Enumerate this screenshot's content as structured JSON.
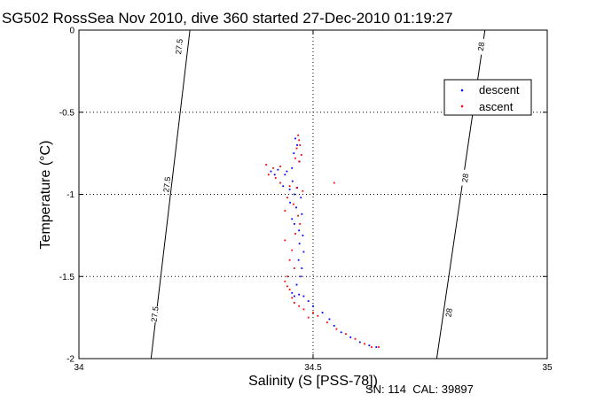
{
  "chart_data": {
    "type": "scatter",
    "title": "SG502 RossSea Nov 2010, dive 360 started 27-Dec-2010 01:19:27",
    "xlabel": "Salinity (S [PSS-78])",
    "ylabel": "Temperature (°C)",
    "xlim": [
      34,
      35
    ],
    "ylim": [
      -2,
      0
    ],
    "x_ticks": [
      "34",
      "34.5",
      "35"
    ],
    "y_ticks": [
      "0",
      "-0.5",
      "-1",
      "-1.5",
      "-2"
    ],
    "grid": true,
    "legend_position": "top-right",
    "footer": "SN: 114  CAL: 39897",
    "contours": [
      {
        "label": "27.5",
        "points": [
          [
            34.154,
            -2
          ],
          [
            34.237,
            0
          ]
        ],
        "label_at": [
          [
            34.214,
            -0.1
          ],
          [
            34.188,
            -0.94
          ],
          [
            34.162,
            -1.73
          ]
        ]
      },
      {
        "label": "28",
        "points": [
          [
            34.764,
            -2
          ],
          [
            34.867,
            0
          ]
        ],
        "label_at": [
          [
            34.859,
            -0.1
          ],
          [
            34.825,
            -0.9
          ],
          [
            34.79,
            -1.72
          ]
        ]
      }
    ],
    "series": [
      {
        "name": "descent",
        "color": "#0000ff",
        "points": [
          [
            34.462,
            -0.66
          ],
          [
            34.466,
            -0.7
          ],
          [
            34.459,
            -0.75
          ],
          [
            34.471,
            -0.8
          ],
          [
            34.455,
            -0.84
          ],
          [
            34.444,
            -0.86
          ],
          [
            34.425,
            -0.85
          ],
          [
            34.41,
            -0.86
          ],
          [
            34.418,
            -0.88
          ],
          [
            34.44,
            -0.88
          ],
          [
            34.456,
            -0.92
          ],
          [
            34.466,
            -0.96
          ],
          [
            34.436,
            -0.95
          ],
          [
            34.45,
            -0.97
          ],
          [
            34.46,
            -1.0
          ],
          [
            34.474,
            -1.02
          ],
          [
            34.451,
            -1.05
          ],
          [
            34.464,
            -1.08
          ],
          [
            34.476,
            -1.12
          ],
          [
            34.455,
            -1.15
          ],
          [
            34.46,
            -1.18
          ],
          [
            34.47,
            -1.22
          ],
          [
            34.478,
            -1.25
          ],
          [
            34.471,
            -1.3
          ],
          [
            34.48,
            -1.35
          ],
          [
            34.469,
            -1.4
          ],
          [
            34.476,
            -1.45
          ],
          [
            34.474,
            -1.5
          ],
          [
            34.465,
            -1.55
          ],
          [
            34.455,
            -1.6
          ],
          [
            34.46,
            -1.62
          ],
          [
            34.47,
            -1.61
          ],
          [
            34.48,
            -1.62
          ],
          [
            34.49,
            -1.65
          ],
          [
            34.5,
            -1.68
          ],
          [
            34.52,
            -1.72
          ],
          [
            34.535,
            -1.76
          ],
          [
            34.545,
            -1.8
          ],
          [
            34.56,
            -1.84
          ],
          [
            34.58,
            -1.87
          ],
          [
            34.6,
            -1.9
          ],
          [
            34.62,
            -1.92
          ],
          [
            34.635,
            -1.93
          ]
        ]
      },
      {
        "name": "ascent",
        "color": "#ff0000",
        "points": [
          [
            34.468,
            -0.64
          ],
          [
            34.47,
            -0.67
          ],
          [
            34.472,
            -0.7
          ],
          [
            34.465,
            -0.72
          ],
          [
            34.475,
            -0.76
          ],
          [
            34.462,
            -0.78
          ],
          [
            34.47,
            -0.8
          ],
          [
            34.4,
            -0.82
          ],
          [
            34.415,
            -0.84
          ],
          [
            34.43,
            -0.83
          ],
          [
            34.405,
            -0.88
          ],
          [
            34.42,
            -0.9
          ],
          [
            34.43,
            -0.93
          ],
          [
            34.45,
            -0.95
          ],
          [
            34.465,
            -0.96
          ],
          [
            34.478,
            -0.98
          ],
          [
            34.445,
            -1.02
          ],
          [
            34.458,
            -1.06
          ],
          [
            34.44,
            -1.1
          ],
          [
            34.468,
            -1.13
          ],
          [
            34.472,
            -1.18
          ],
          [
            34.462,
            -1.24
          ],
          [
            34.44,
            -1.28
          ],
          [
            34.455,
            -1.34
          ],
          [
            34.45,
            -1.4
          ],
          [
            34.46,
            -1.45
          ],
          [
            34.445,
            -1.5
          ],
          [
            34.44,
            -1.53
          ],
          [
            34.445,
            -1.56
          ],
          [
            34.45,
            -1.58
          ],
          [
            34.455,
            -1.63
          ],
          [
            34.46,
            -1.66
          ],
          [
            34.47,
            -1.68
          ],
          [
            34.48,
            -1.7
          ],
          [
            34.5,
            -1.72
          ],
          [
            34.51,
            -1.74
          ],
          [
            34.49,
            -1.75
          ],
          [
            34.53,
            -1.78
          ],
          [
            34.55,
            -1.82
          ],
          [
            34.57,
            -1.85
          ],
          [
            34.59,
            -1.88
          ],
          [
            34.61,
            -1.91
          ],
          [
            34.625,
            -1.93
          ],
          [
            34.64,
            -1.93
          ],
          [
            34.545,
            -0.93
          ]
        ]
      }
    ]
  }
}
